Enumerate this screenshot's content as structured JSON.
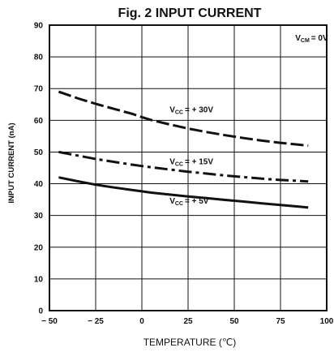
{
  "chart_data": {
    "type": "line",
    "title": "Fig. 2 INPUT CURRENT",
    "xlabel": "TEMPERATURE (℃)",
    "ylabel": "INPUT CURRENT (nA)",
    "xlim": [
      -50,
      100
    ],
    "ylim": [
      0,
      90
    ],
    "xticks": [
      -50,
      -25,
      0,
      25,
      50,
      75,
      100
    ],
    "xtick_labels": [
      "− 50",
      "− 25",
      "0",
      "25",
      "50",
      "75",
      "100"
    ],
    "yticks": [
      0,
      10,
      20,
      30,
      40,
      50,
      60,
      70,
      80,
      90
    ],
    "grid": true,
    "series": [
      {
        "name": "V_CC = +30V",
        "label_main": "V",
        "label_sub": "CC",
        "label_rest": "= + 30V",
        "line_style": "long-dash",
        "x": [
          -45,
          -35,
          -25,
          -15,
          -5,
          0,
          5,
          15,
          25,
          35,
          45,
          55,
          65,
          75,
          85,
          90
        ],
        "y": [
          69,
          67,
          65.2,
          63.6,
          62,
          61,
          60.1,
          58.7,
          57.4,
          56.3,
          55.3,
          54.4,
          53.6,
          52.9,
          52.3,
          52
        ]
      },
      {
        "name": "V_CC = +15V",
        "label_main": "V",
        "label_sub": "CC",
        "label_rest": "= + 15V",
        "line_style": "dash-dot",
        "x": [
          -45,
          -35,
          -25,
          -15,
          -5,
          0,
          5,
          15,
          25,
          35,
          45,
          55,
          65,
          75,
          85,
          90
        ],
        "y": [
          50,
          48.9,
          47.8,
          46.9,
          46,
          45.6,
          45.2,
          44.5,
          43.8,
          43.2,
          42.6,
          42.1,
          41.6,
          41.2,
          40.9,
          40.7
        ]
      },
      {
        "name": "V_CC = +5V",
        "label_main": "V",
        "label_sub": "CC",
        "label_rest": "= + 5V",
        "line_style": "solid",
        "x": [
          -45,
          -35,
          -25,
          -15,
          -5,
          0,
          5,
          15,
          25,
          35,
          45,
          55,
          65,
          75,
          85,
          90
        ],
        "y": [
          42,
          40.8,
          39.7,
          38.8,
          38,
          37.6,
          37.2,
          36.6,
          36,
          35.5,
          34.9,
          34.4,
          33.8,
          33.3,
          32.8,
          32.5
        ]
      }
    ],
    "annotation": {
      "main": "V",
      "sub": "CM",
      "rest": "= 0V"
    }
  }
}
